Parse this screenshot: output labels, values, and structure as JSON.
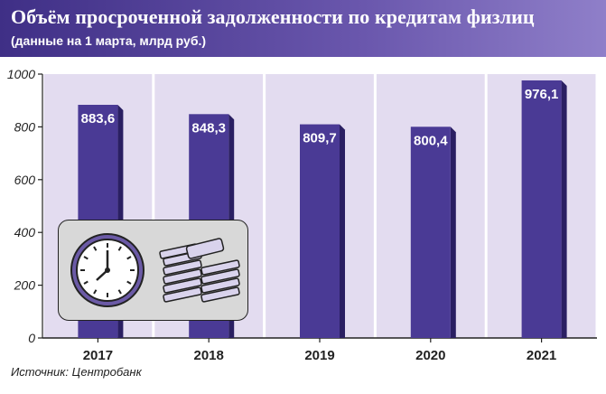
{
  "header": {
    "title": "Объём просроченной задолженности по кредитам физлиц",
    "subtitle": "(данные на 1 марта, млрд руб.)"
  },
  "source": "Источник: Центробанк",
  "colors": {
    "header": "#4b3b93",
    "bar_front": "#4a3a95",
    "bar_side": "#2a1f62",
    "column_bg": "#e3dcf0",
    "icon_panel": "#d8d8d8"
  },
  "icons": [
    "clock-icon",
    "money-stack-icon"
  ],
  "chart_data": {
    "type": "bar",
    "categories": [
      "2017",
      "2018",
      "2019",
      "2020",
      "2021"
    ],
    "values": [
      883.6,
      848.3,
      809.7,
      800.4,
      976.1
    ],
    "value_labels": [
      "883,6",
      "848,3",
      "809,7",
      "800,4",
      "976,1"
    ],
    "yticks": [
      "0",
      "200",
      "400",
      "600",
      "800",
      "1000"
    ],
    "ylim": [
      0,
      1000
    ],
    "grid": false,
    "title": "Объём просроченной задолженности по кредитам физлиц",
    "subtitle": "(данные на 1 марта, млрд руб.)"
  }
}
